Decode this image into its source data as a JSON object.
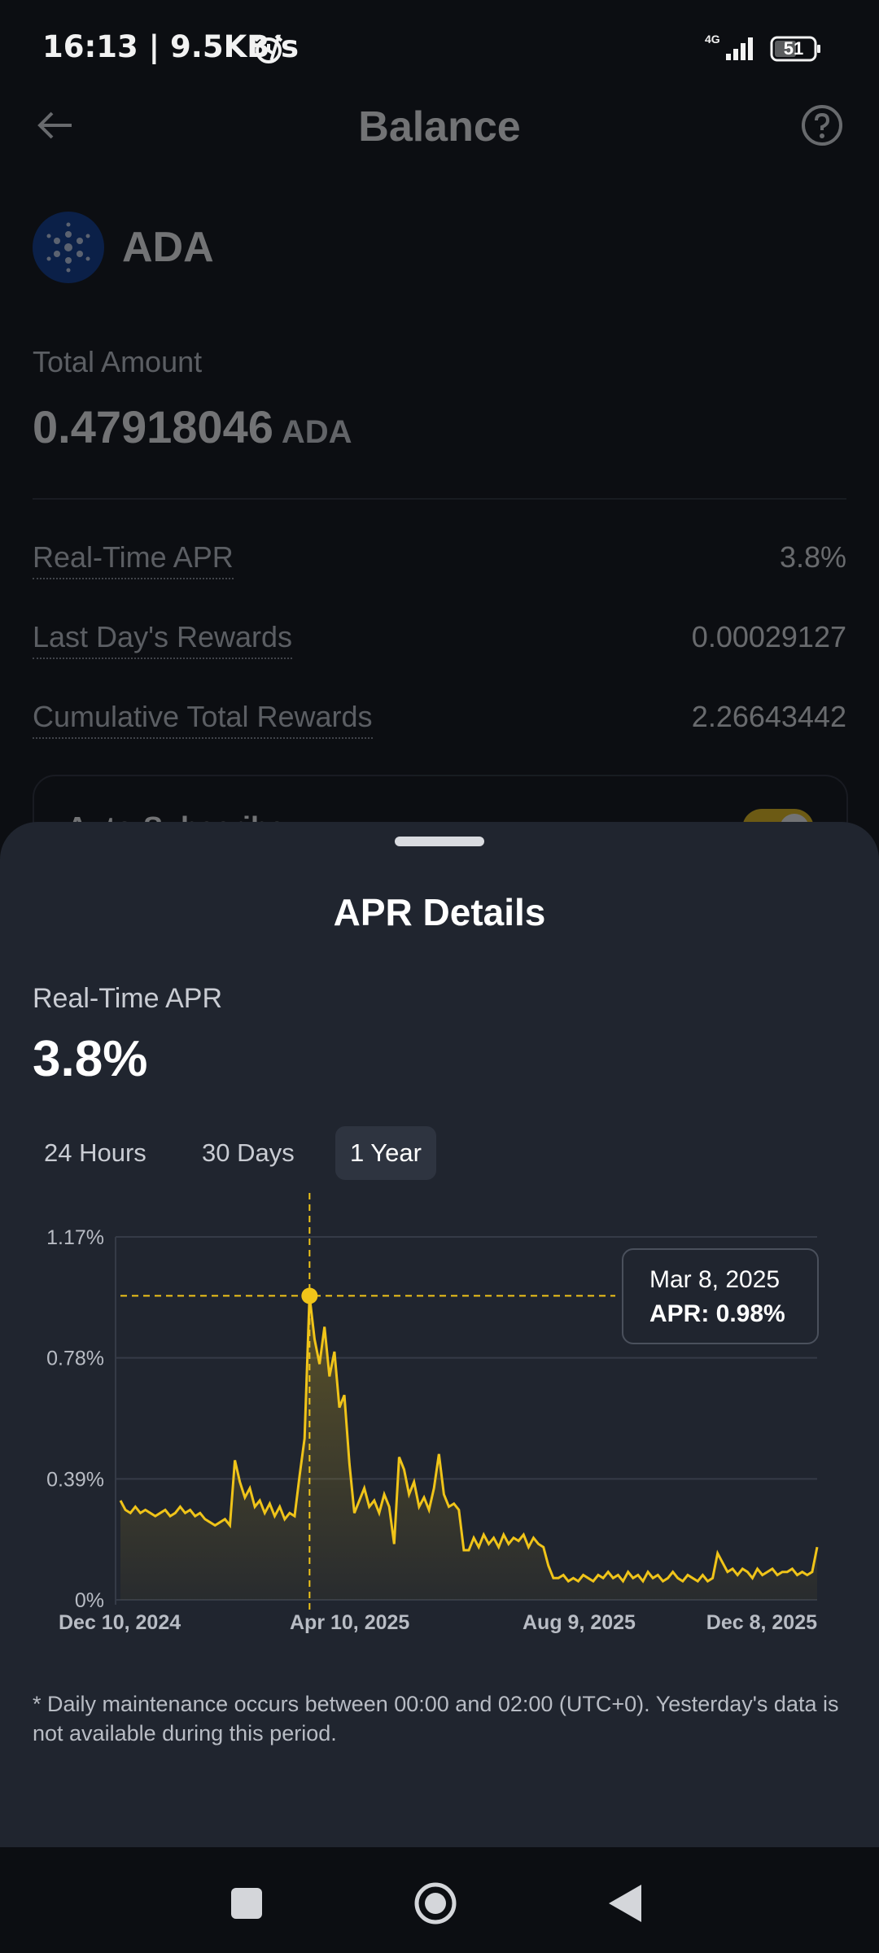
{
  "status_bar": {
    "time": "16:13 | 9.5KB/s",
    "network": "4G",
    "battery": "51"
  },
  "header": {
    "title": "Balance"
  },
  "asset": {
    "name": "ADA",
    "total_label": "Total Amount",
    "total_value": "0.47918046",
    "total_unit": "ADA"
  },
  "rows": [
    {
      "label": "Real-Time APR",
      "value": "3.8%"
    },
    {
      "label": "Last Day's Rewards",
      "value": "0.00029127"
    },
    {
      "label": "Cumulative Total Rewards",
      "value": "2.26643442"
    }
  ],
  "auto_subscribe": {
    "label": "Auto-Subscribe",
    "enabled": true
  },
  "sheet": {
    "title": "APR Details",
    "apr_label": "Real-Time APR",
    "apr_value": "3.8%",
    "tabs": [
      {
        "label": "24 Hours"
      },
      {
        "label": "30 Days"
      },
      {
        "label": "1 Year",
        "active": true
      }
    ],
    "footnote": "* Daily maintenance occurs between 00:00 and 02:00 (UTC+0). Yesterday's data is not available during this period."
  },
  "colors": {
    "accent": "#f0c419",
    "sheet_bg": "#20252f",
    "page_bg": "#0c0e12"
  },
  "chart_data": {
    "type": "area",
    "title": "",
    "xlabel": "",
    "ylabel": "",
    "ylim": [
      0,
      1.17
    ],
    "y_ticks": [
      {
        "value": 1.17,
        "label": "1.17%"
      },
      {
        "value": 0.78,
        "label": "0.78%"
      },
      {
        "value": 0.39,
        "label": "0.39%"
      },
      {
        "value": 0,
        "label": "0%"
      }
    ],
    "x_ticks": [
      "Dec 10, 2024",
      "Apr 10, 2025",
      "Aug 9, 2025",
      "Dec 8, 2025"
    ],
    "series": [
      {
        "values": [
          0.32,
          0.29,
          0.28,
          0.3,
          0.28,
          0.29,
          0.28,
          0.27,
          0.28,
          0.29,
          0.27,
          0.28,
          0.3,
          0.28,
          0.29,
          0.27,
          0.28,
          0.26,
          0.25,
          0.24,
          0.25,
          0.26,
          0.24,
          0.45,
          0.38,
          0.33,
          0.36,
          0.3,
          0.32,
          0.28,
          0.31,
          0.27,
          0.3,
          0.26,
          0.28,
          0.27,
          0.4,
          0.52,
          0.98,
          0.84,
          0.76,
          0.88,
          0.72,
          0.8,
          0.62,
          0.66,
          0.44,
          0.28,
          0.32,
          0.36,
          0.3,
          0.32,
          0.28,
          0.34,
          0.3,
          0.18,
          0.46,
          0.42,
          0.34,
          0.38,
          0.3,
          0.33,
          0.29,
          0.36,
          0.47,
          0.34,
          0.3,
          0.31,
          0.29,
          0.16,
          0.16,
          0.2,
          0.17,
          0.21,
          0.18,
          0.2,
          0.17,
          0.21,
          0.18,
          0.2,
          0.19,
          0.21,
          0.17,
          0.2,
          0.18,
          0.17,
          0.11,
          0.07,
          0.07,
          0.08,
          0.06,
          0.07,
          0.06,
          0.08,
          0.07,
          0.06,
          0.08,
          0.07,
          0.09,
          0.07,
          0.08,
          0.06,
          0.09,
          0.07,
          0.08,
          0.06,
          0.09,
          0.07,
          0.08,
          0.06,
          0.07,
          0.09,
          0.07,
          0.06,
          0.08,
          0.07,
          0.06,
          0.08,
          0.06,
          0.07,
          0.15,
          0.12,
          0.09,
          0.1,
          0.08,
          0.1,
          0.09,
          0.07,
          0.1,
          0.08,
          0.09,
          0.1,
          0.08,
          0.09,
          0.09,
          0.1,
          0.08,
          0.09,
          0.08,
          0.09,
          0.17
        ]
      }
    ],
    "highlight": {
      "date": "Mar 8, 2025",
      "apr": "APR: 0.98%",
      "value": 0.98,
      "index": 38
    }
  }
}
